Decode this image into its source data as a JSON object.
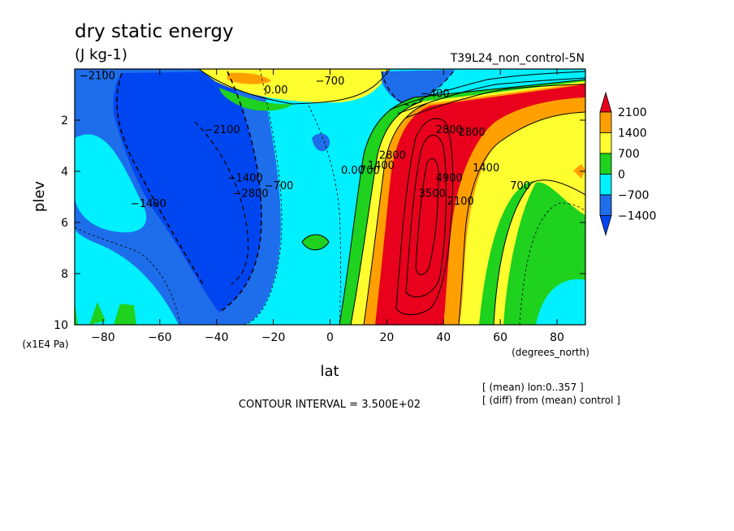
{
  "chart_data": {
    "type": "heatmap",
    "title": "dry static energy",
    "units": "(J kg-1)",
    "run_label": "T39L24_non_control-5N",
    "xlabel": "lat",
    "x_units": "(degrees_north)",
    "ylabel": "plev",
    "y_units": "(x1E4 Pa)",
    "xlim": [
      -90,
      90
    ],
    "ylim": [
      10,
      0
    ],
    "x_ticks": [
      -80,
      -60,
      -40,
      -20,
      0,
      20,
      40,
      60,
      80
    ],
    "y_ticks": [
      2,
      4,
      6,
      8,
      10
    ],
    "contour_interval_text": "CONTOUR INTERVAL = 3.500E+02",
    "notes": [
      "[ (mean) lon:0..357 ]",
      "[ (diff) from (mean) control ]"
    ],
    "colorbar": {
      "labels": [
        "2100",
        "1400",
        "700",
        "0",
        "-700",
        "-1400"
      ],
      "colors": [
        "#e8001c",
        "#ffa000",
        "#ffff2f",
        "#1ed21e",
        "#00f0ff",
        "#1e6eeb",
        "#0046f0"
      ]
    },
    "contour_labels": [
      {
        "text": "-2100",
        "lat": -82,
        "p": 0.4
      },
      {
        "text": "0.00",
        "lat": -19,
        "p": 0.95
      },
      {
        "text": "-700",
        "lat": 0,
        "p": 0.6
      },
      {
        "text": "-2100",
        "lat": -38,
        "p": 2.5
      },
      {
        "text": "-1400",
        "lat": -30,
        "p": 4.4
      },
      {
        "text": "-2800",
        "lat": -28,
        "p": 5.0
      },
      {
        "text": "-700",
        "lat": -18,
        "p": 4.7
      },
      {
        "text": "-1400",
        "lat": -64,
        "p": 5.4
      },
      {
        "text": "0.00",
        "lat": 8,
        "p": 4.1
      },
      {
        "text": "700",
        "lat": 14,
        "p": 4.1
      },
      {
        "text": "1400",
        "lat": 18,
        "p": 3.9
      },
      {
        "text": "2800",
        "lat": 22,
        "p": 3.5
      },
      {
        "text": "-400",
        "lat": 37,
        "p": 1.1
      },
      {
        "text": "2800",
        "lat": 42,
        "p": 2.5
      },
      {
        "text": "3500",
        "lat": 36,
        "p": 5.0
      },
      {
        "text": "4900",
        "lat": 42,
        "p": 4.4
      },
      {
        "text": "2100",
        "lat": 46,
        "p": 5.3
      },
      {
        "text": "2800",
        "lat": 50,
        "p": 2.6
      },
      {
        "text": "1400",
        "lat": 55,
        "p": 4.0
      },
      {
        "text": "700",
        "lat": 67,
        "p": 4.7
      }
    ]
  }
}
